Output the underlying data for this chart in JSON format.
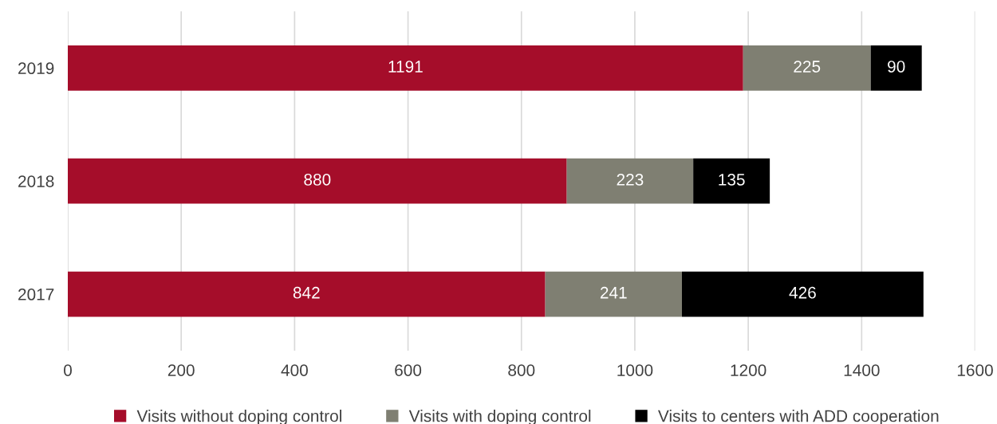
{
  "chart_data": {
    "type": "bar",
    "orientation": "horizontal",
    "stacked": true,
    "categories": [
      "2019",
      "2018",
      "2017"
    ],
    "series": [
      {
        "name": "Visits without doping control",
        "color": "#a50d2a",
        "values": [
          1191,
          880,
          842
        ]
      },
      {
        "name": "Visits with doping control",
        "color": "#7f7f72",
        "values": [
          225,
          223,
          241
        ]
      },
      {
        "name": "Visits to centers with ADD cooperation",
        "color": "#000000",
        "values": [
          90,
          135,
          426
        ]
      }
    ],
    "xlim": [
      0,
      1600
    ],
    "xticks": [
      0,
      200,
      400,
      600,
      800,
      1000,
      1200,
      1400,
      1600
    ],
    "grid": "x",
    "legend": "bottom",
    "data_labels": true
  }
}
